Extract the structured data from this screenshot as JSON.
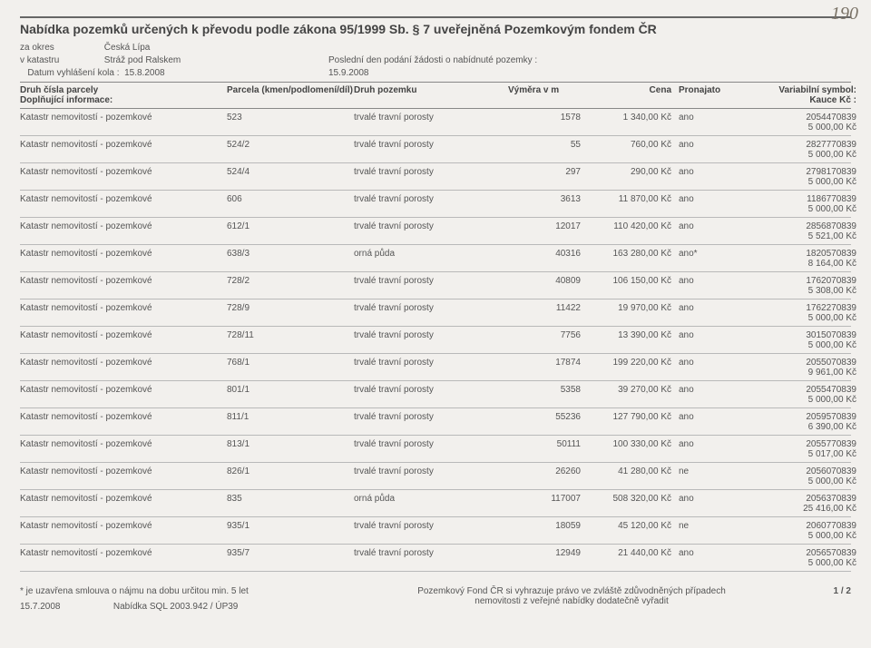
{
  "page_number_handwritten": "190",
  "title": "Nabídka pozemků určených k převodu podle zákona 95/1999 Sb. § 7 uveřejněná Pozemkovým fondem ČR",
  "meta": {
    "okres_label": "za okres",
    "okres": "Česká Lípa",
    "katastr_label": "v katastru",
    "katastr": "Stráž pod Ralskem",
    "posledni_label": "Poslední den podání žádosti o nabídnuté pozemky :",
    "datum_label": "Datum vyhlášení kola :",
    "datum": "15.8.2008",
    "posledni": "15.9.2008"
  },
  "headers": {
    "c1a": "Druh čísla parcely",
    "c1b": "Doplňující informace:",
    "c2": "Parcela (kmen/podlomení/díl)",
    "c3": "Druh pozemku",
    "c4": "Výměra v m",
    "c5": "Cena",
    "c6": "Pronajato",
    "c7a": "Variabilní symbol:",
    "c7b": "Kauce Kč :"
  },
  "rows": [
    {
      "k": "Katastr nemovitostí - pozemkové",
      "p": "523",
      "d": "trvalé travní porosty",
      "v": "1578",
      "c": "1 340,00 Kč",
      "pr": "ano",
      "vs": "2054470839",
      "ka": "5 000,00 Kč"
    },
    {
      "k": "Katastr nemovitostí - pozemkové",
      "p": "524/2",
      "d": "trvalé travní porosty",
      "v": "55",
      "c": "760,00 Kč",
      "pr": "ano",
      "vs": "2827770839",
      "ka": "5 000,00 Kč"
    },
    {
      "k": "Katastr nemovitostí - pozemkové",
      "p": "524/4",
      "d": "trvalé travní porosty",
      "v": "297",
      "c": "290,00 Kč",
      "pr": "ano",
      "vs": "2798170839",
      "ka": "5 000,00 Kč"
    },
    {
      "k": "Katastr nemovitostí - pozemkové",
      "p": "606",
      "d": "trvalé travní porosty",
      "v": "3613",
      "c": "11 870,00 Kč",
      "pr": "ano",
      "vs": "1186770839",
      "ka": "5 000,00 Kč"
    },
    {
      "k": "Katastr nemovitostí - pozemkové",
      "p": "612/1",
      "d": "trvalé travní porosty",
      "v": "12017",
      "c": "110 420,00 Kč",
      "pr": "ano",
      "vs": "2856870839",
      "ka": "5 521,00 Kč"
    },
    {
      "k": "Katastr nemovitostí - pozemkové",
      "p": "638/3",
      "d": "orná půda",
      "v": "40316",
      "c": "163 280,00 Kč",
      "pr": "ano*",
      "vs": "1820570839",
      "ka": "8 164,00 Kč"
    },
    {
      "k": "Katastr nemovitostí - pozemkové",
      "p": "728/2",
      "d": "trvalé travní porosty",
      "v": "40809",
      "c": "106 150,00 Kč",
      "pr": "ano",
      "vs": "1762070839",
      "ka": "5 308,00 Kč"
    },
    {
      "k": "Katastr nemovitostí - pozemkové",
      "p": "728/9",
      "d": "trvalé travní porosty",
      "v": "11422",
      "c": "19 970,00 Kč",
      "pr": "ano",
      "vs": "1762270839",
      "ka": "5 000,00 Kč"
    },
    {
      "k": "Katastr nemovitostí - pozemkové",
      "p": "728/11",
      "d": "trvalé travní porosty",
      "v": "7756",
      "c": "13 390,00 Kč",
      "pr": "ano",
      "vs": "3015070839",
      "ka": "5 000,00 Kč"
    },
    {
      "k": "Katastr nemovitostí - pozemkové",
      "p": "768/1",
      "d": "trvalé travní porosty",
      "v": "17874",
      "c": "199 220,00 Kč",
      "pr": "ano",
      "vs": "2055070839",
      "ka": "9 961,00 Kč"
    },
    {
      "k": "Katastr nemovitostí - pozemkové",
      "p": "801/1",
      "d": "trvalé travní porosty",
      "v": "5358",
      "c": "39 270,00 Kč",
      "pr": "ano",
      "vs": "2055470839",
      "ka": "5 000,00 Kč"
    },
    {
      "k": "Katastr nemovitostí - pozemkové",
      "p": "811/1",
      "d": "trvalé travní porosty",
      "v": "55236",
      "c": "127 790,00 Kč",
      "pr": "ano",
      "vs": "2059570839",
      "ka": "6 390,00 Kč"
    },
    {
      "k": "Katastr nemovitostí - pozemkové",
      "p": "813/1",
      "d": "trvalé travní porosty",
      "v": "50111",
      "c": "100 330,00 Kč",
      "pr": "ano",
      "vs": "2055770839",
      "ka": "5 017,00 Kč"
    },
    {
      "k": "Katastr nemovitostí - pozemkové",
      "p": "826/1",
      "d": "trvalé travní porosty",
      "v": "26260",
      "c": "41 280,00 Kč",
      "pr": "ne",
      "vs": "2056070839",
      "ka": "5 000,00 Kč"
    },
    {
      "k": "Katastr nemovitostí - pozemkové",
      "p": "835",
      "d": "orná půda",
      "v": "117007",
      "c": "508 320,00 Kč",
      "pr": "ano",
      "vs": "2056370839",
      "ka": "25 416,00 Kč"
    },
    {
      "k": "Katastr nemovitostí - pozemkové",
      "p": "935/1",
      "d": "trvalé travní porosty",
      "v": "18059",
      "c": "45 120,00 Kč",
      "pr": "ne",
      "vs": "2060770839",
      "ka": "5 000,00 Kč"
    },
    {
      "k": "Katastr nemovitostí - pozemkové",
      "p": "935/7",
      "d": "trvalé travní porosty",
      "v": "12949",
      "c": "21 440,00 Kč",
      "pr": "ano",
      "vs": "2056570839",
      "ka": "5 000,00 Kč"
    }
  ],
  "footer": {
    "note": "* je uzavřena smlouva o nájmu na dobu určitou min. 5 let",
    "date": "15.7.2008",
    "src": "Nabídka SQL 2003.942 / ÚP39",
    "right1": "Pozemkový Fond ČR si vyhrazuje právo ve zvláště zdůvodněných případech",
    "right2": "nemovitosti z veřejné nabídky dodatečně vyřadit",
    "page": "1 / 2"
  }
}
